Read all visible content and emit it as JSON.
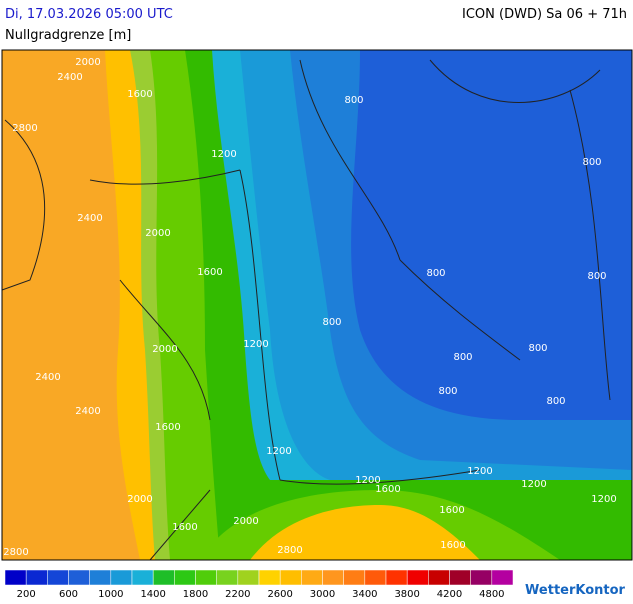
{
  "header": {
    "datetime": "Di, 17.03.2026 05:00 UTC",
    "model": "ICON (DWD) Sa 06 + 71h",
    "parameter": "Nullgradgrenze [m]"
  },
  "map": {
    "contour_labels": [
      2400,
      2000,
      1600,
      2800,
      1200,
      800,
      800,
      2400,
      2000,
      1600,
      800,
      800,
      800,
      2000,
      1200,
      800,
      800,
      2400,
      800,
      800,
      1600,
      2400,
      1200,
      1200,
      1200,
      2000,
      1600,
      1200,
      1200,
      1600,
      2000,
      1600,
      2800,
      2800,
      1600
    ]
  },
  "legend": {
    "colors": [
      "#0000c8",
      "#0a28d2",
      "#1446d7",
      "#1e5fd8",
      "#1e7fd8",
      "#1a9ad8",
      "#1ab0d8",
      "#1ebe28",
      "#2dc814",
      "#50cd0a",
      "#78d21e",
      "#a0d21e",
      "#ffd200",
      "#ffbe00",
      "#ffaa14",
      "#ff961e",
      "#ff7d14",
      "#ff5a0a",
      "#ff3200",
      "#f00000",
      "#c80000",
      "#a00028",
      "#960064",
      "#b400a0"
    ],
    "labels": [
      200,
      600,
      1000,
      1400,
      1800,
      2200,
      2600,
      3000,
      3400,
      3800,
      4200,
      4800
    ]
  },
  "logo": "WetterKontor"
}
